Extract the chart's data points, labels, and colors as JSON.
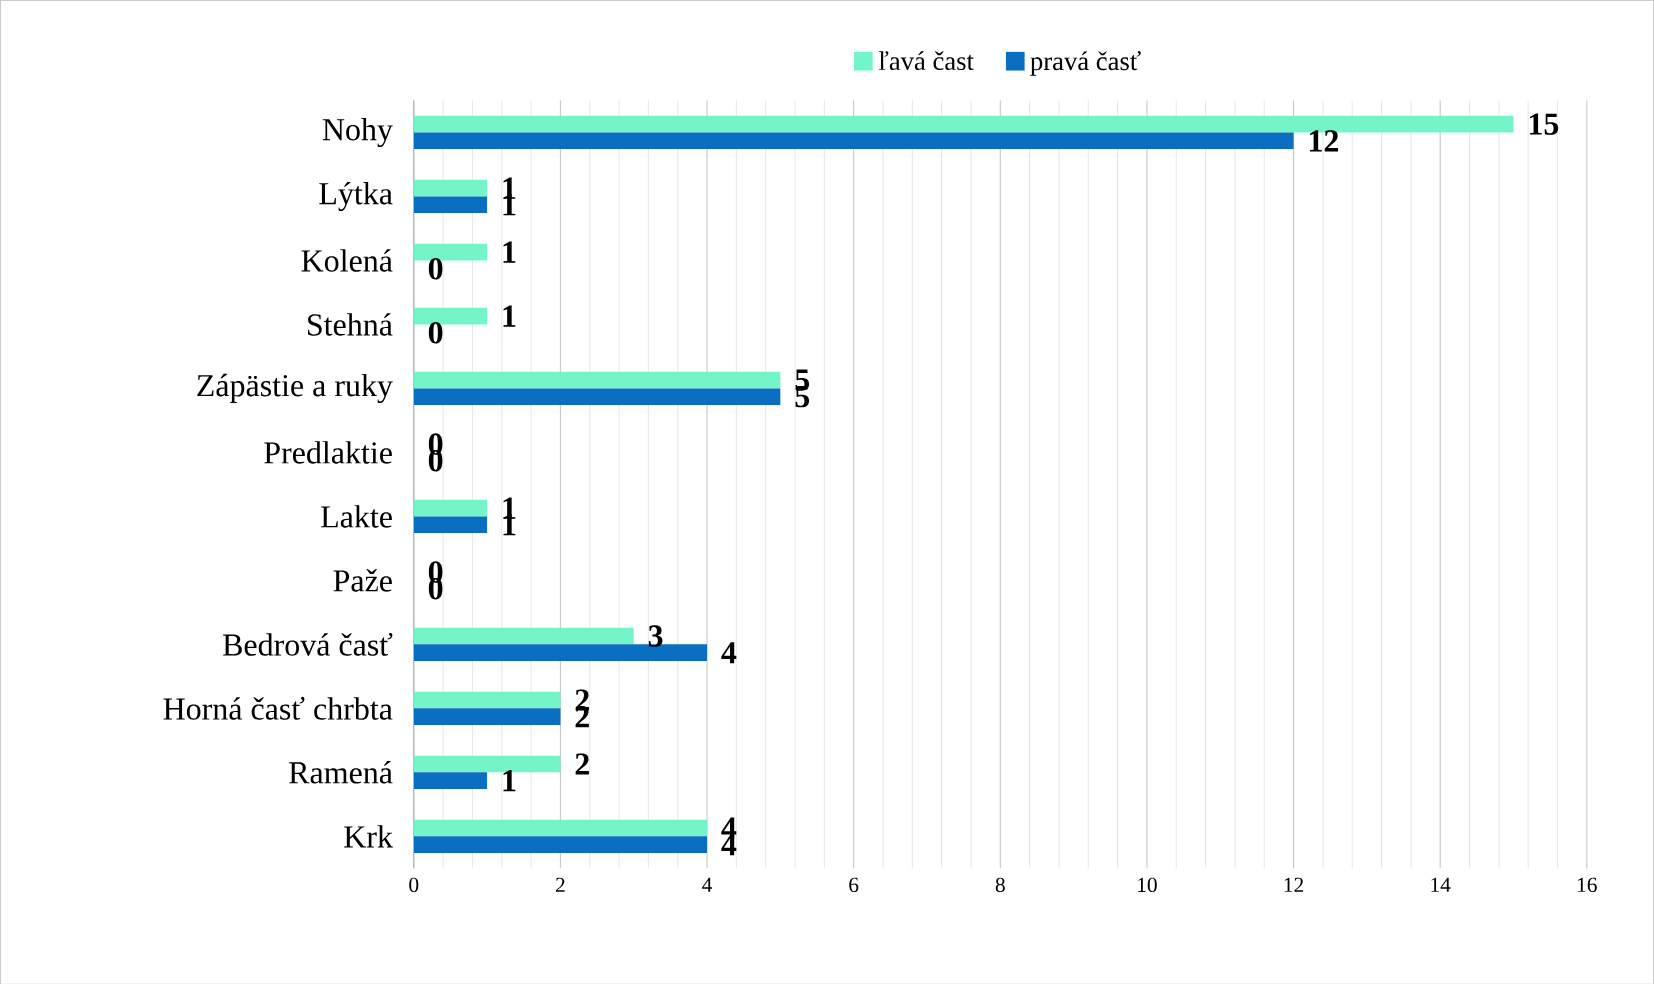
{
  "chart_data": {
    "type": "bar",
    "orientation": "horizontal",
    "categories": [
      "Nohy",
      "Lýtka",
      "Kolená",
      "Stehná",
      "Zápästie a ruky",
      "Predlaktie",
      "Lakte",
      "Paže",
      "Bedrová časť",
      "Horná časť chrbta",
      "Ramená",
      "Krk"
    ],
    "series": [
      {
        "name": "ľavá čast",
        "color": "#73f5c8",
        "values": [
          15,
          1,
          1,
          1,
          5,
          0,
          1,
          0,
          3,
          2,
          2,
          4
        ]
      },
      {
        "name": "pravá časť",
        "color": "#0a6fc2",
        "values": [
          12,
          1,
          0,
          0,
          5,
          0,
          1,
          0,
          4,
          2,
          1,
          4
        ]
      }
    ],
    "xlim": [
      0,
      16
    ],
    "xticks": [
      0,
      2,
      4,
      6,
      8,
      10,
      12,
      14,
      16
    ],
    "grid": "x",
    "legend": "top",
    "data_labels": true
  }
}
